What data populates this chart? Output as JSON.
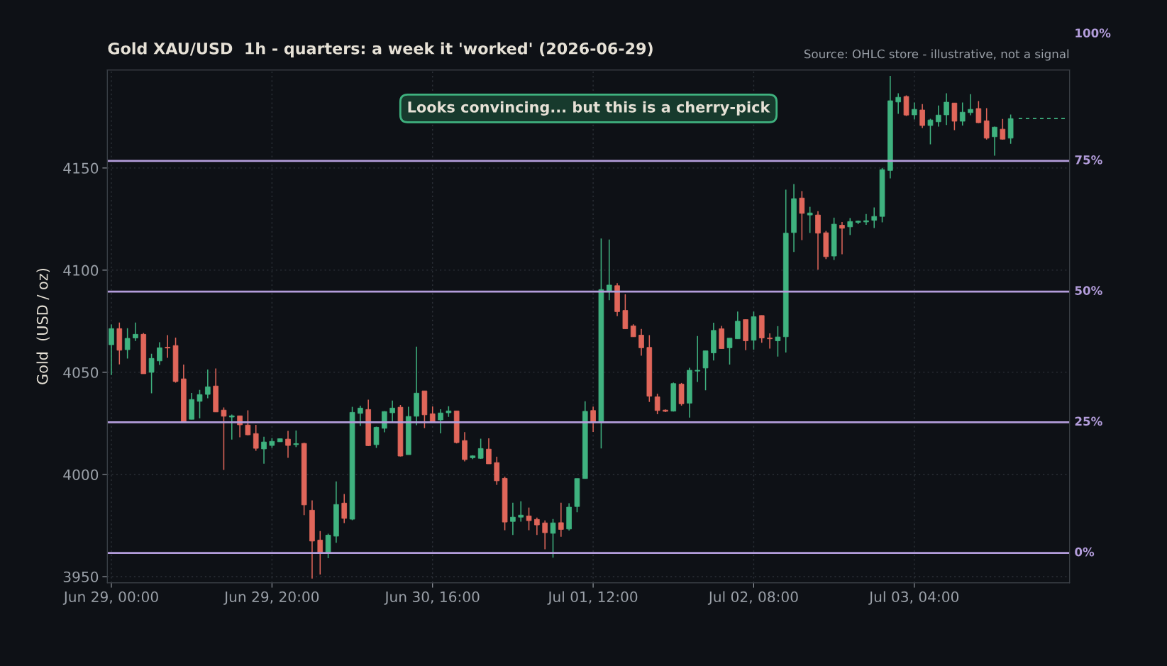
{
  "chart_data": {
    "type": "candlestick",
    "title": "Gold XAU/USD  1h - quarters: a week it 'worked' (2026-06-29)",
    "ylabel": "Gold  (USD / oz)",
    "annotations": [
      "Looks convincing... but this is a cherry-pick",
      "Source: OHLC store - illustrative, not a signal",
      "100%"
    ],
    "x": [
      "2026-06-29T00:00",
      "2026-06-29T01:00",
      "2026-06-29T02:00",
      "2026-06-29T03:00",
      "2026-06-29T04:00",
      "2026-06-29T05:00",
      "2026-06-29T06:00",
      "2026-06-29T07:00",
      "2026-06-29T08:00",
      "2026-06-29T09:00",
      "2026-06-29T10:00",
      "2026-06-29T11:00",
      "2026-06-29T12:00",
      "2026-06-29T13:00",
      "2026-06-29T14:00",
      "2026-06-29T15:00",
      "2026-06-29T16:00",
      "2026-06-29T17:00",
      "2026-06-29T18:00",
      "2026-06-29T19:00",
      "2026-06-29T20:00",
      "2026-06-29T21:00",
      "2026-06-29T22:00",
      "2026-06-29T23:00",
      "2026-06-30T00:00",
      "2026-06-30T01:00",
      "2026-06-30T02:00",
      "2026-06-30T03:00",
      "2026-06-30T04:00",
      "2026-06-30T05:00",
      "2026-06-30T06:00",
      "2026-06-30T07:00",
      "2026-06-30T08:00",
      "2026-06-30T09:00",
      "2026-06-30T10:00",
      "2026-06-30T11:00",
      "2026-06-30T12:00",
      "2026-06-30T13:00",
      "2026-06-30T14:00",
      "2026-06-30T15:00",
      "2026-06-30T16:00",
      "2026-06-30T17:00",
      "2026-06-30T18:00",
      "2026-06-30T19:00",
      "2026-06-30T20:00",
      "2026-06-30T21:00",
      "2026-06-30T22:00",
      "2026-06-30T23:00",
      "2026-07-01T00:00",
      "2026-07-01T01:00",
      "2026-07-01T02:00",
      "2026-07-01T03:00",
      "2026-07-01T04:00",
      "2026-07-01T05:00",
      "2026-07-01T06:00",
      "2026-07-01T07:00",
      "2026-07-01T08:00",
      "2026-07-01T09:00",
      "2026-07-01T10:00",
      "2026-07-01T11:00",
      "2026-07-01T12:00",
      "2026-07-01T13:00",
      "2026-07-01T14:00",
      "2026-07-01T15:00",
      "2026-07-01T16:00",
      "2026-07-01T17:00",
      "2026-07-01T18:00",
      "2026-07-01T19:00",
      "2026-07-01T20:00",
      "2026-07-01T21:00",
      "2026-07-01T22:00",
      "2026-07-01T23:00",
      "2026-07-02T00:00",
      "2026-07-02T01:00",
      "2026-07-02T02:00",
      "2026-07-02T03:00",
      "2026-07-02T04:00",
      "2026-07-02T05:00",
      "2026-07-02T06:00",
      "2026-07-02T07:00",
      "2026-07-02T08:00",
      "2026-07-02T09:00",
      "2026-07-02T10:00",
      "2026-07-02T11:00",
      "2026-07-02T12:00",
      "2026-07-02T13:00",
      "2026-07-02T14:00",
      "2026-07-02T15:00",
      "2026-07-02T16:00",
      "2026-07-02T17:00",
      "2026-07-02T18:00",
      "2026-07-02T19:00",
      "2026-07-02T20:00",
      "2026-07-02T21:00",
      "2026-07-02T22:00",
      "2026-07-02T23:00",
      "2026-07-03T00:00",
      "2026-07-03T01:00",
      "2026-07-03T02:00",
      "2026-07-03T03:00",
      "2026-07-03T04:00",
      "2026-07-03T05:00",
      "2026-07-03T06:00",
      "2026-07-03T07:00",
      "2026-07-03T08:00",
      "2026-07-03T09:00",
      "2026-07-03T10:00",
      "2026-07-03T11:00",
      "2026-07-03T12:00",
      "2026-07-03T13:00",
      "2026-07-03T14:00",
      "2026-07-03T15:00",
      "2026-07-03T16:00"
    ],
    "ohlc": [
      [
        4063.5,
        4073.4,
        4048.7,
        4071.4
      ],
      [
        4071.4,
        4074.4,
        4053.9,
        4060.8
      ],
      [
        4061.1,
        4071.6,
        4056.7,
        4066.6
      ],
      [
        4066.8,
        4074.4,
        4065.3,
        4068.6
      ],
      [
        4068.6,
        4069.2,
        4049.3,
        4049.3
      ],
      [
        4050,
        4059.1,
        4039.7,
        4056.8
      ],
      [
        4055.6,
        4064.7,
        4053.6,
        4062
      ],
      [
        4062.3,
        4068.2,
        4057.1,
        4061.9
      ],
      [
        4063.1,
        4067,
        4044.9,
        4045.5
      ],
      [
        4046.8,
        4053.8,
        4025.7,
        4026
      ],
      [
        4027,
        4039.9,
        4027,
        4036.7
      ],
      [
        4035.8,
        4041.4,
        4027.5,
        4039.1
      ],
      [
        4039.2,
        4051.4,
        4037.3,
        4042.9
      ],
      [
        4043.3,
        4051.9,
        4030.6,
        4030.6
      ],
      [
        4031.5,
        4032.8,
        4002.2,
        4028.5
      ],
      [
        4028.1,
        4029.3,
        4017.1,
        4028.7
      ],
      [
        4028.7,
        4028.7,
        4018.2,
        4024.3
      ],
      [
        4024.2,
        4031.4,
        4019.2,
        4019.4
      ],
      [
        4020,
        4024.3,
        4011.6,
        4012.8
      ],
      [
        4012.5,
        4018.5,
        4005.3,
        4015.9
      ],
      [
        4014.2,
        4017.8,
        4013,
        4016.2
      ],
      [
        4016,
        4017.5,
        4016,
        4017.5
      ],
      [
        4017.3,
        4021.3,
        4008.1,
        4014.2
      ],
      [
        4014.6,
        4021.5,
        4013.4,
        4015.1
      ],
      [
        4015.2,
        4015.5,
        3980.1,
        3985.1
      ],
      [
        3982.5,
        3987.3,
        3949,
        3967.4
      ],
      [
        3967.9,
        3972.3,
        3951,
        3961.3
      ],
      [
        3961.3,
        3971,
        3959,
        3970.3
      ],
      [
        3969.8,
        3996.6,
        3966.6,
        3985.3
      ],
      [
        3986,
        3990.4,
        3976.2,
        3978.5
      ],
      [
        3978.1,
        4033.1,
        3977.6,
        4030.4
      ],
      [
        4029.9,
        4033.7,
        4023.8,
        4032.5
      ],
      [
        4031.8,
        4036.6,
        4013.9,
        4014.1
      ],
      [
        4014.6,
        4023.4,
        4013,
        4023.1
      ],
      [
        4022.6,
        4031,
        4020.6,
        4030.8
      ],
      [
        4030.2,
        4036.2,
        4025.6,
        4032.5
      ],
      [
        4032.9,
        4034,
        4008.8,
        4009
      ],
      [
        4009.7,
        4033.1,
        4009.7,
        4028.4
      ],
      [
        4028.5,
        4062.6,
        4024.1,
        4039.8
      ],
      [
        4040.9,
        4040.9,
        4022.7,
        4029.2
      ],
      [
        4029.7,
        4033.3,
        4026,
        4026
      ],
      [
        4026.7,
        4031.9,
        4020.1,
        4030.1
      ],
      [
        4030.2,
        4033.4,
        4028.2,
        4031.1
      ],
      [
        4031.1,
        4031.1,
        4015.2,
        4015.6
      ],
      [
        4016.6,
        4020.7,
        4006.4,
        4007.3
      ],
      [
        4008.2,
        4009.4,
        4007.5,
        4009.1
      ],
      [
        4007.9,
        4017.5,
        4007.6,
        4012.7
      ],
      [
        4012.4,
        4017.7,
        4005.2,
        4005.2
      ],
      [
        4005.8,
        4008.7,
        3994.9,
        3996.9
      ],
      [
        3998.1,
        3998.9,
        3972.7,
        3976.7
      ],
      [
        3977,
        3986.2,
        3970.4,
        3979.1
      ],
      [
        3979.1,
        3986.9,
        3976.9,
        3980.1
      ],
      [
        3979.7,
        3983.8,
        3972.7,
        3977.4
      ],
      [
        3978,
        3978.9,
        3970.4,
        3975.3
      ],
      [
        3976.3,
        3977.5,
        3963.4,
        3971.5
      ],
      [
        3971.2,
        3978.2,
        3959.3,
        3976.3
      ],
      [
        3976.4,
        3986.2,
        3969.5,
        3973.1
      ],
      [
        3973.3,
        3985.9,
        3972.6,
        3984
      ],
      [
        3984.3,
        3998,
        3981.5,
        3998
      ],
      [
        3998,
        4035.8,
        3998,
        4030.9
      ],
      [
        4031.3,
        4033.2,
        4020.8,
        4025.4
      ],
      [
        4025.4,
        4115.5,
        4012.7,
        4090.5
      ],
      [
        4089.8,
        4115,
        4085.3,
        4092.7
      ],
      [
        4092.4,
        4093.6,
        4077.5,
        4079.7
      ],
      [
        4080.3,
        4088.2,
        4071.3,
        4071.3
      ],
      [
        4072.7,
        4073.5,
        4067.4,
        4067.4
      ],
      [
        4068.2,
        4071.2,
        4058.1,
        4062
      ],
      [
        4062.2,
        4068.2,
        4035.5,
        4038.3
      ],
      [
        4038,
        4039.5,
        4029.5,
        4031.3
      ],
      [
        4031.5,
        4031.8,
        4030.5,
        4030.9
      ],
      [
        4031,
        4045,
        4030.8,
        4044.5
      ],
      [
        4044.2,
        4044.8,
        4033.7,
        4034.6
      ],
      [
        4034.9,
        4052.2,
        4027.8,
        4051
      ],
      [
        4050.6,
        4067.8,
        4045.3,
        4051
      ],
      [
        4052.1,
        4060.5,
        4041.2,
        4060.5
      ],
      [
        4059.5,
        4074.3,
        4055.8,
        4070.5
      ],
      [
        4071.3,
        4072.7,
        4061.6,
        4061.6
      ],
      [
        4062,
        4066.7,
        4053.8,
        4066.7
      ],
      [
        4066.4,
        4079.7,
        4066.4,
        4075
      ],
      [
        4075.8,
        4075.8,
        4060.8,
        4065.4
      ],
      [
        4065.7,
        4079.7,
        4061.1,
        4077.2
      ],
      [
        4077.8,
        4077.8,
        4064.5,
        4066.8
      ],
      [
        4066.8,
        4069.1,
        4061.6,
        4066.4
      ],
      [
        4065.4,
        4072.6,
        4057.7,
        4067.3
      ],
      [
        4067.4,
        4139.4,
        4059.7,
        4118.1
      ],
      [
        4118.4,
        4142.1,
        4108.9,
        4135
      ],
      [
        4135.3,
        4138.7,
        4114.7,
        4127.8
      ],
      [
        4127,
        4131,
        4118.2,
        4128
      ],
      [
        4127,
        4128.9,
        4100.2,
        4118.1
      ],
      [
        4118.3,
        4119.2,
        4105.4,
        4106.6
      ],
      [
        4106.9,
        4125.7,
        4105,
        4122.5
      ],
      [
        4122,
        4123.6,
        4107.8,
        4120.5
      ],
      [
        4121.2,
        4125.5,
        4117.2,
        4123.8
      ],
      [
        4123.4,
        4124.3,
        4122.5,
        4124
      ],
      [
        4123.6,
        4127.5,
        4122.2,
        4124.2
      ],
      [
        4124.4,
        4130.7,
        4120.6,
        4126.3
      ],
      [
        4126.3,
        4150,
        4123.4,
        4149.2
      ],
      [
        4148.8,
        4195.1,
        4144.9,
        4182.9
      ],
      [
        4182.3,
        4186.6,
        4176.5,
        4184.6
      ],
      [
        4185,
        4185.5,
        4175.5,
        4175.9
      ],
      [
        4176,
        4182.1,
        4173.7,
        4178.7
      ],
      [
        4178.4,
        4181.3,
        4169.6,
        4170.8
      ],
      [
        4170.8,
        4174.1,
        4161.6,
        4173.5
      ],
      [
        4172.6,
        4180.6,
        4170.3,
        4175.9
      ],
      [
        4176,
        4186.6,
        4171,
        4182.2
      ],
      [
        4181.8,
        4181.8,
        4168.5,
        4172.9
      ],
      [
        4172.9,
        4182.1,
        4170.8,
        4177.3
      ],
      [
        4177.1,
        4186.1,
        4175.8,
        4178.7
      ],
      [
        4179.1,
        4182.8,
        4172,
        4172.2
      ],
      [
        4173.1,
        4179.3,
        4163.9,
        4164.6
      ],
      [
        4165.3,
        4170.3,
        4156,
        4170
      ],
      [
        4169,
        4174,
        4163.9,
        4164.1
      ],
      [
        4164.6,
        4176.2,
        4161.8,
        4174.2
      ]
    ],
    "colors": [
      "#3fb27f",
      "#e0665a",
      "#3fb27f",
      "#3fb27f",
      "#e0665a",
      "#3fb27f",
      "#3fb27f",
      "#e0665a",
      "#e0665a",
      "#e0665a",
      "#3fb27f",
      "#3fb27f",
      "#3fb27f",
      "#e0665a",
      "#e0665a",
      "#3fb27f",
      "#e0665a",
      "#e0665a",
      "#e0665a",
      "#3fb27f",
      "#3fb27f",
      "#3fb27f",
      "#e0665a",
      "#3fb27f",
      "#e0665a",
      "#e0665a",
      "#e0665a",
      "#3fb27f",
      "#3fb27f",
      "#e0665a",
      "#3fb27f",
      "#3fb27f",
      "#e0665a",
      "#3fb27f",
      "#3fb27f",
      "#3fb27f",
      "#e0665a",
      "#3fb27f",
      "#3fb27f",
      "#e0665a",
      "#e0665a",
      "#3fb27f",
      "#3fb27f",
      "#e0665a",
      "#e0665a",
      "#3fb27f",
      "#3fb27f",
      "#e0665a",
      "#e0665a",
      "#e0665a",
      "#3fb27f",
      "#3fb27f",
      "#e0665a",
      "#e0665a",
      "#e0665a",
      "#3fb27f",
      "#e0665a",
      "#3fb27f",
      "#3fb27f",
      "#3fb27f",
      "#e0665a",
      "#3fb27f",
      "#3fb27f",
      "#e0665a",
      "#e0665a",
      "#e0665a",
      "#e0665a",
      "#e0665a",
      "#e0665a",
      "#e0665a",
      "#3fb27f",
      "#e0665a",
      "#3fb27f",
      "#3fb27f",
      "#3fb27f",
      "#3fb27f",
      "#e0665a",
      "#3fb27f",
      "#3fb27f",
      "#e0665a",
      "#3fb27f",
      "#e0665a",
      "#e0665a",
      "#3fb27f",
      "#3fb27f",
      "#3fb27f",
      "#e0665a",
      "#3fb27f",
      "#e0665a",
      "#e0665a",
      "#3fb27f",
      "#e0665a",
      "#3fb27f",
      "#3fb27f",
      "#3fb27f",
      "#3fb27f",
      "#3fb27f",
      "#3fb27f",
      "#3fb27f",
      "#e0665a",
      "#3fb27f",
      "#e0665a",
      "#3fb27f",
      "#3fb27f",
      "#3fb27f",
      "#e0665a",
      "#3fb27f",
      "#3fb27f",
      "#e0665a",
      "#e0665a",
      "#3fb27f",
      "#e0665a",
      "#3fb27f"
    ],
    "series": [
      {
        "type": "line",
        "x": [
          "2026-07-03T17:00",
          "2026-07-03T23:00"
        ],
        "values": [
          4174.2,
          4174.2
        ],
        "color": "#3fb27f",
        "line_style": "dashed"
      }
    ],
    "ref_lines": [
      {
        "axis": "y2",
        "value": 0,
        "label": "0%",
        "color": "#b39ddb"
      },
      {
        "axis": "y2",
        "value": 25,
        "label": "25%",
        "color": "#b39ddb"
      },
      {
        "axis": "y2",
        "value": 50,
        "label": "50%",
        "color": "#b39ddb"
      },
      {
        "axis": "y2",
        "value": 75,
        "label": "75%",
        "color": "#b39ddb"
      }
    ],
    "y2lim": [
      -5.7,
      92.4
    ],
    "xlim": [
      "2026-06-28T23:30",
      "2026-07-03T23:20"
    ],
    "xticks": [
      {
        "value": "2026-06-29T00:00",
        "label": "Jun 29, 00:00"
      },
      {
        "value": "2026-06-29T20:00",
        "label": "Jun 29, 20:00"
      },
      {
        "value": "2026-06-30T16:00",
        "label": "Jun 30, 16:00"
      },
      {
        "value": "2026-07-01T12:00",
        "label": "Jul 01, 12:00"
      },
      {
        "value": "2026-07-02T08:00",
        "label": "Jul 02, 08:00"
      },
      {
        "value": "2026-07-03T04:00",
        "label": "Jul 03, 04:00"
      }
    ],
    "ylim": [
      3947,
      4198
    ],
    "yticks": [
      3950,
      4000,
      4050,
      4100,
      4150
    ],
    "grid": true
  }
}
